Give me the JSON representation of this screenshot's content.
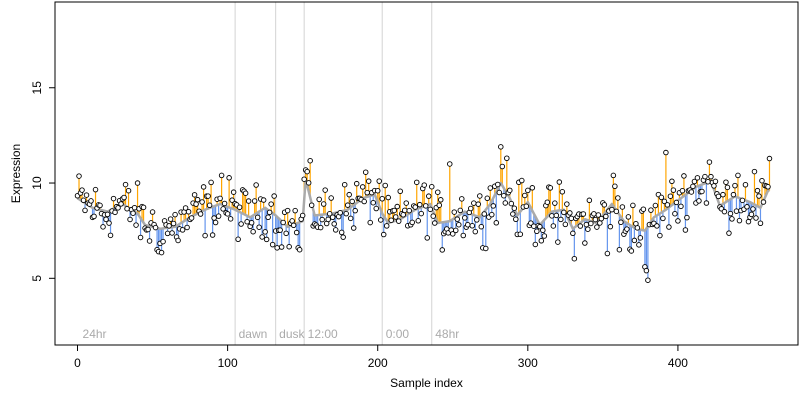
{
  "chart_data": {
    "type": "scatter",
    "title": "",
    "xlabel": "Sample index",
    "ylabel": "Expression",
    "xlim": [
      -15,
      480
    ],
    "ylim": [
      1.5,
      19.5
    ],
    "x_ticks": [
      0,
      100,
      200,
      300,
      400
    ],
    "y_ticks": [
      5,
      10,
      15
    ],
    "grid": false,
    "annotations": [
      {
        "text": "24hr",
        "x": 2
      },
      {
        "text": "dawn",
        "x": 106
      },
      {
        "text": "dusk",
        "x": 133
      },
      {
        "text": "12:00",
        "x": 152
      },
      {
        "text": "0:00",
        "x": 204
      },
      {
        "text": "48hr",
        "x": 237
      }
    ],
    "vlines": [
      105,
      132,
      151,
      203,
      236
    ],
    "colors": {
      "above_fit": "#ffa500",
      "below_fit": "#6495ed",
      "fit": "#aaaaaa",
      "points": "#000000",
      "vlines": "#d3d3d3",
      "annotation_text": "#aaaaaa"
    },
    "fit_anchors": [
      [
        0,
        9.2
      ],
      [
        10,
        8.7
      ],
      [
        20,
        8.5
      ],
      [
        30,
        8.9
      ],
      [
        40,
        8.4
      ],
      [
        45,
        7.8
      ],
      [
        55,
        7.6
      ],
      [
        65,
        7.7
      ],
      [
        75,
        8.2
      ],
      [
        85,
        8.6
      ],
      [
        95,
        8.9
      ],
      [
        105,
        8.6
      ],
      [
        115,
        8.2
      ],
      [
        125,
        8.7
      ],
      [
        132,
        8.3
      ],
      [
        140,
        7.7
      ],
      [
        150,
        8.0
      ],
      [
        152,
        10.2
      ],
      [
        158,
        8.3
      ],
      [
        170,
        8.4
      ],
      [
        180,
        8.6
      ],
      [
        190,
        9.2
      ],
      [
        198,
        9.4
      ],
      [
        203,
        8.4
      ],
      [
        207,
        7.9
      ],
      [
        215,
        8.1
      ],
      [
        225,
        8.6
      ],
      [
        235,
        8.9
      ],
      [
        240,
        7.9
      ],
      [
        248,
        8.0
      ],
      [
        258,
        8.5
      ],
      [
        268,
        8.2
      ],
      [
        275,
        8.9
      ],
      [
        282,
        10.0
      ],
      [
        288,
        9.2
      ],
      [
        293,
        8.3
      ],
      [
        300,
        9.0
      ],
      [
        308,
        7.8
      ],
      [
        316,
        8.5
      ],
      [
        324,
        8.6
      ],
      [
        330,
        7.6
      ],
      [
        338,
        8.1
      ],
      [
        346,
        7.9
      ],
      [
        356,
        8.9
      ],
      [
        364,
        8.0
      ],
      [
        372,
        7.6
      ],
      [
        378,
        7.5
      ],
      [
        384,
        8.2
      ],
      [
        392,
        8.6
      ],
      [
        402,
        9.2
      ],
      [
        412,
        9.8
      ],
      [
        422,
        10.1
      ],
      [
        428,
        8.8
      ],
      [
        438,
        9.3
      ],
      [
        448,
        9.0
      ],
      [
        455,
        8.7
      ],
      [
        460,
        9.6
      ]
    ],
    "residual_amplitude": 1.1,
    "outliers": [
      [
        17,
        7.7
      ],
      [
        53,
        6.5
      ],
      [
        54,
        6.4
      ],
      [
        96,
        10.4
      ],
      [
        133,
        6.6
      ],
      [
        147,
        6.6
      ],
      [
        148,
        6.5
      ],
      [
        151,
        10.2
      ],
      [
        153,
        10.6
      ],
      [
        201,
        10.1
      ],
      [
        248,
        11.0
      ],
      [
        273,
        9.2
      ],
      [
        282,
        11.9
      ],
      [
        286,
        11.3
      ],
      [
        320,
        6.9
      ],
      [
        353,
        6.3
      ],
      [
        357,
        10.4
      ],
      [
        361,
        6.5
      ],
      [
        378,
        5.6
      ],
      [
        379,
        5.4
      ],
      [
        380,
        4.9
      ],
      [
        392,
        11.6
      ],
      [
        421,
        11.1
      ],
      [
        440,
        10.4
      ],
      [
        451,
        10.6
      ]
    ],
    "n_points": 462
  }
}
